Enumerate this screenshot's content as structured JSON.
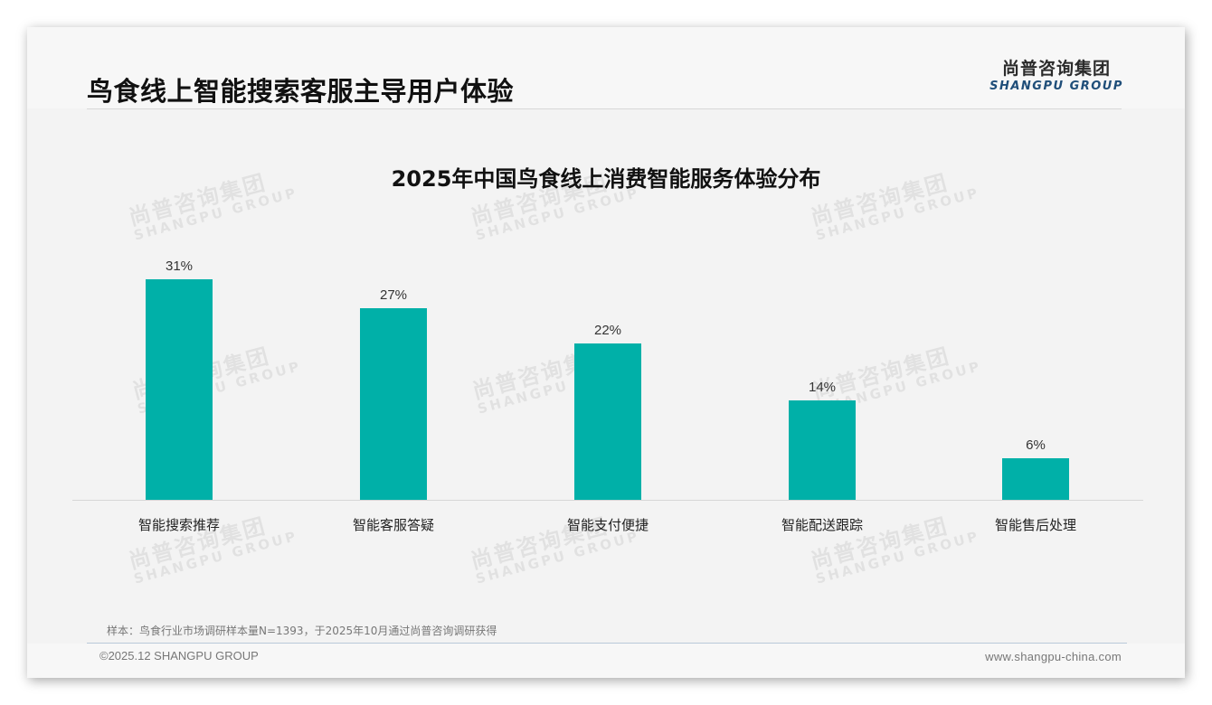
{
  "header": {
    "title": "鸟食线上智能搜索客服主导用户体验",
    "logo_cn": "尚普咨询集团",
    "logo_en": "SHANGPU GROUP"
  },
  "watermark": {
    "cn": "尚普咨询集团",
    "en": "SHANGPU GROUP"
  },
  "chart_data": {
    "type": "bar",
    "title": "2025年中国鸟食线上消费智能服务体验分布",
    "categories": [
      "智能搜索推荐",
      "智能客服答疑",
      "智能支付便捷",
      "智能配送跟踪",
      "智能售后处理"
    ],
    "values": [
      31,
      27,
      22,
      14,
      6
    ],
    "value_labels": [
      "31%",
      "27%",
      "22%",
      "14%",
      "6%"
    ],
    "unit": "%",
    "xlabel": "",
    "ylabel": "",
    "ylim": [
      0,
      32
    ],
    "grid": false,
    "legend": "none",
    "bar_color": "#00b0a8"
  },
  "footer": {
    "note": "样本：鸟食行业市场调研样本量N=1393，于2025年10月通过尚普咨询调研获得",
    "copyright": "©2025.12 SHANGPU GROUP",
    "website": "www.shangpu-china.com"
  },
  "colors": {
    "accent": "#00b0a8",
    "logo_blue": "#1f4e79",
    "background": "#f3f3f3"
  }
}
